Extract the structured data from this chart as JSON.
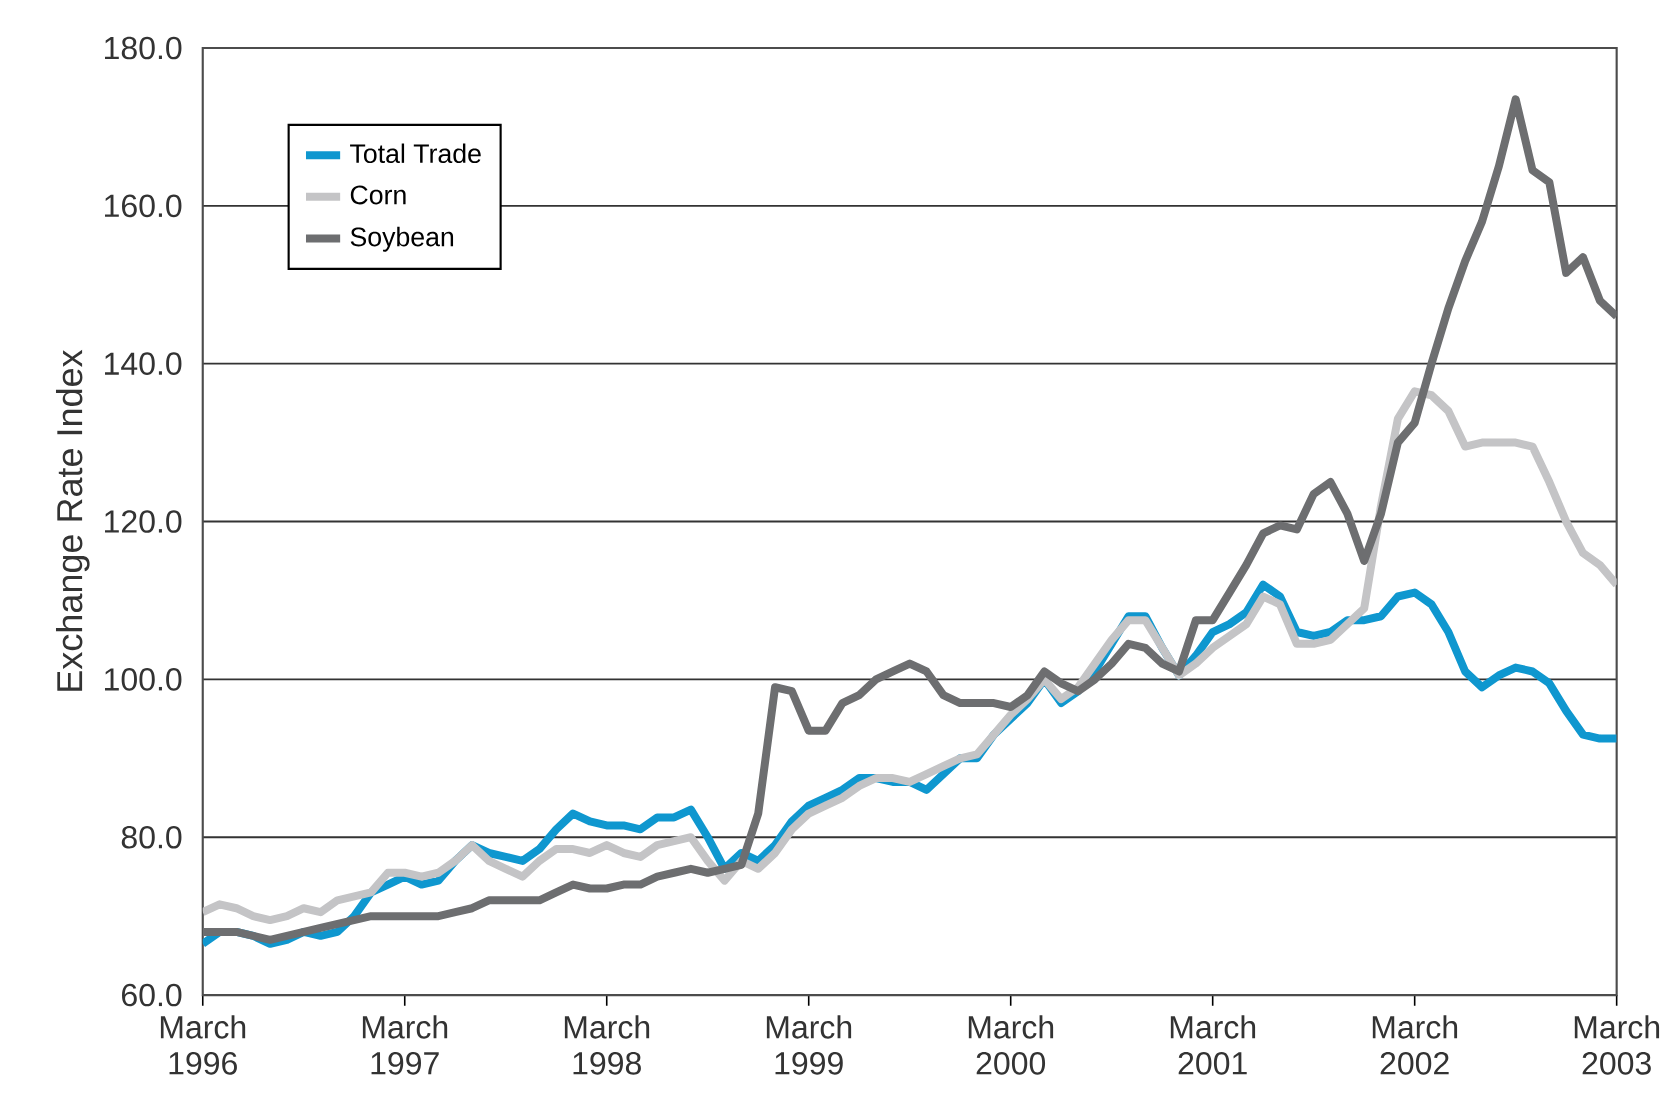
{
  "chart_data": {
    "type": "line",
    "ylabel": "Exchange Rate Index",
    "x": [
      "1996-03",
      "1996-04",
      "1996-05",
      "1996-06",
      "1996-07",
      "1996-08",
      "1996-09",
      "1996-10",
      "1996-11",
      "1996-12",
      "1997-01",
      "1997-02",
      "1997-03",
      "1997-04",
      "1997-05",
      "1997-06",
      "1997-07",
      "1997-08",
      "1997-09",
      "1997-10",
      "1997-11",
      "1997-12",
      "1998-01",
      "1998-02",
      "1998-03",
      "1998-04",
      "1998-05",
      "1998-06",
      "1998-07",
      "1998-08",
      "1998-09",
      "1998-10",
      "1998-11",
      "1998-12",
      "1999-01",
      "1999-02",
      "1999-03",
      "1999-04",
      "1999-05",
      "1999-06",
      "1999-07",
      "1999-08",
      "1999-09",
      "1999-10",
      "1999-11",
      "1999-12",
      "2000-01",
      "2000-02",
      "2000-03",
      "2000-04",
      "2000-05",
      "2000-06",
      "2000-07",
      "2000-08",
      "2000-09",
      "2000-10",
      "2000-11",
      "2000-12",
      "2001-01",
      "2001-02",
      "2001-03",
      "2001-04",
      "2001-05",
      "2001-06",
      "2001-07",
      "2001-08",
      "2001-09",
      "2001-10",
      "2001-11",
      "2001-12",
      "2002-01",
      "2002-02",
      "2002-03",
      "2002-04",
      "2002-05",
      "2002-06",
      "2002-07",
      "2002-08",
      "2002-09",
      "2002-10",
      "2002-11",
      "2002-12",
      "2003-01",
      "2003-02",
      "2003-03"
    ],
    "series": [
      {
        "name": "Total Trade",
        "color": "#0f97cf",
        "values": [
          66.5,
          68,
          68,
          67.5,
          66.5,
          67,
          68,
          67.5,
          68,
          70,
          73,
          74,
          75,
          74,
          74.5,
          77,
          79,
          78,
          77.5,
          77,
          78.5,
          81,
          83,
          82,
          81.5,
          81.5,
          81,
          82.5,
          82.5,
          83.5,
          80,
          76,
          78,
          77,
          79,
          82,
          84,
          85,
          86,
          87.5,
          87.5,
          87,
          87,
          86,
          88,
          90,
          90,
          93,
          95,
          97,
          100,
          97,
          98.5,
          101,
          104.5,
          108,
          108,
          104,
          100.5,
          103,
          106,
          107,
          108.5,
          112,
          110.5,
          106,
          105.5,
          106,
          107.5,
          107.5,
          108,
          110.5,
          111,
          109.5,
          106,
          101,
          99,
          100.5,
          101.5,
          101,
          99.5,
          96,
          93,
          92.5,
          92.5
        ]
      },
      {
        "name": "Corn",
        "color": "#c4c4c6",
        "values": [
          70.5,
          71.5,
          71,
          70,
          69.5,
          70,
          71,
          70.5,
          72,
          72.5,
          73,
          75.5,
          75.5,
          75,
          75.5,
          77,
          79,
          77,
          76,
          75,
          77,
          78.5,
          78.5,
          78,
          79,
          78,
          77.5,
          79,
          79.5,
          80,
          77,
          74.5,
          77,
          76,
          78,
          81,
          83,
          84,
          85,
          86.5,
          87.5,
          87.5,
          87,
          88,
          89,
          90,
          90.5,
          93,
          95.5,
          97.5,
          100,
          97.5,
          99,
          102,
          105,
          107.5,
          107.5,
          104,
          100.5,
          102,
          104,
          105.5,
          107,
          110.5,
          109.5,
          104.5,
          104.5,
          105,
          107,
          109,
          122,
          133,
          136.5,
          136,
          134,
          129.5,
          130,
          130,
          130,
          129.5,
          125,
          120,
          116,
          114.5,
          112
        ]
      },
      {
        "name": "Soybean",
        "color": "#6d6e70",
        "values": [
          68,
          68,
          68,
          67.5,
          67,
          67.5,
          68,
          68.5,
          69,
          69.5,
          70,
          70,
          70,
          70,
          70,
          70.5,
          71,
          72,
          72,
          72,
          72,
          73,
          74,
          73.5,
          73.5,
          74,
          74,
          75,
          75.5,
          76,
          75.5,
          76,
          76.5,
          83,
          99,
          98.5,
          93.5,
          93.5,
          97,
          98,
          100,
          101,
          102,
          101,
          98,
          97,
          97,
          97,
          96.5,
          98,
          101,
          99.5,
          98.5,
          100,
          102,
          104.5,
          104,
          102,
          101,
          107.5,
          107.5,
          111,
          114.5,
          118.5,
          119.5,
          119,
          123.5,
          125,
          121,
          115,
          121,
          130,
          132.5,
          140,
          147,
          153,
          158,
          165,
          173.5,
          164.5,
          163,
          151.5,
          153.5,
          148,
          146
        ]
      }
    ],
    "xlim": [
      "1996-03",
      "2003-03"
    ],
    "xticks": [
      {
        "value": "1996-03",
        "label": "March 1996"
      },
      {
        "value": "1997-03",
        "label": "March 1997"
      },
      {
        "value": "1998-03",
        "label": "March 1998"
      },
      {
        "value": "1999-03",
        "label": "March 1999"
      },
      {
        "value": "2000-03",
        "label": "March 2000"
      },
      {
        "value": "2001-03",
        "label": "March 2001"
      },
      {
        "value": "2002-03",
        "label": "March 2002"
      },
      {
        "value": "2003-03",
        "label": "March 2003"
      }
    ],
    "ylim": [
      60,
      180
    ],
    "yticks": [
      {
        "value": 60,
        "label": "60.0"
      },
      {
        "value": 80,
        "label": "80.0"
      },
      {
        "value": 100,
        "label": "100.0"
      },
      {
        "value": 120,
        "label": "120.0"
      },
      {
        "value": 140,
        "label": "140.0"
      },
      {
        "value": 160,
        "label": "160.0"
      },
      {
        "value": 180,
        "label": "180.0"
      }
    ],
    "grid": "y",
    "legend": "top left",
    "marker": "none",
    "line_style": "solid"
  }
}
